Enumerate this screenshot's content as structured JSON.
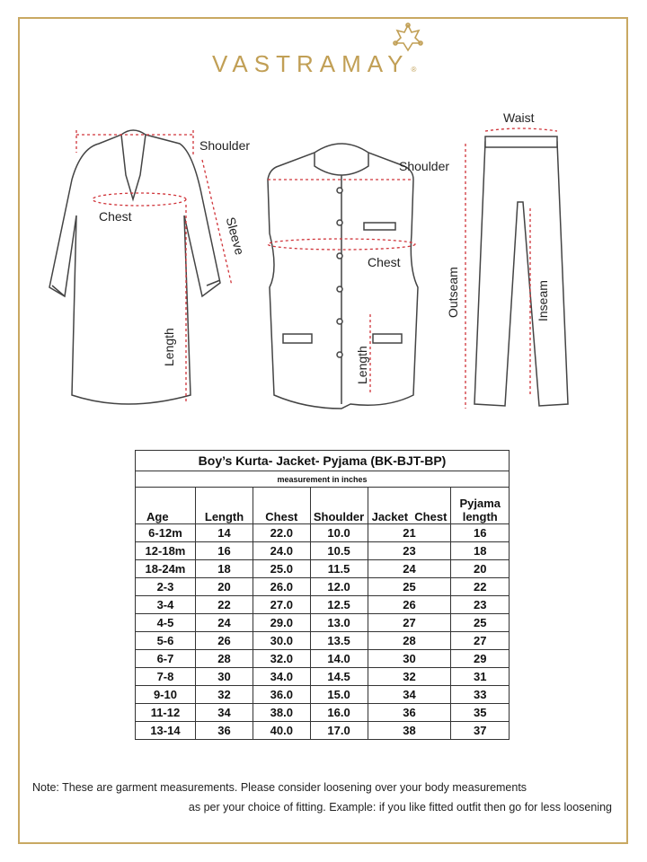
{
  "brand": {
    "name": "VASTRAMAY",
    "registered": "®",
    "color": "#c19f55"
  },
  "diagram": {
    "kurta": {
      "shoulder": "Shoulder",
      "chest": "Chest",
      "sleeve": "Sleeve",
      "length": "Length"
    },
    "jacket": {
      "shoulder": "Shoulder",
      "chest": "Chest",
      "length": "Length"
    },
    "pyjama": {
      "waist": "Waist",
      "outseam": "Outseam",
      "inseam": "Inseam"
    },
    "measure_line_color": "#d0343a"
  },
  "table": {
    "title": "Boy’s Kurta- Jacket- Pyjama (BK-BJT-BP)",
    "subtitle": "measurement in inches",
    "headers": [
      "Age",
      "Length",
      "Chest",
      "Shoulder",
      "Jacket  Chest",
      "Pyjama length"
    ],
    "rows": [
      [
        "6-12m",
        "14",
        "22.0",
        "10.0",
        "21",
        "16"
      ],
      [
        "12-18m",
        "16",
        "24.0",
        "10.5",
        "23",
        "18"
      ],
      [
        "18-24m",
        "18",
        "25.0",
        "11.5",
        "24",
        "20"
      ],
      [
        "2-3",
        "20",
        "26.0",
        "12.0",
        "25",
        "22"
      ],
      [
        "3-4",
        "22",
        "27.0",
        "12.5",
        "26",
        "23"
      ],
      [
        "4-5",
        "24",
        "29.0",
        "13.0",
        "27",
        "25"
      ],
      [
        "5-6",
        "26",
        "30.0",
        "13.5",
        "28",
        "27"
      ],
      [
        "6-7",
        "28",
        "32.0",
        "14.0",
        "30",
        "29"
      ],
      [
        "7-8",
        "30",
        "34.0",
        "14.5",
        "32",
        "31"
      ],
      [
        "9-10",
        "32",
        "36.0",
        "15.0",
        "34",
        "33"
      ],
      [
        "11-12",
        "34",
        "38.0",
        "16.0",
        "36",
        "35"
      ],
      [
        "13-14",
        "36",
        "40.0",
        "17.0",
        "38",
        "37"
      ]
    ]
  },
  "note": {
    "line1": "Note: These are garment measurements. Please consider loosening over your body measurements",
    "line2": "as per your choice of fitting. Example: if you like fitted outfit then go for less loosening"
  }
}
